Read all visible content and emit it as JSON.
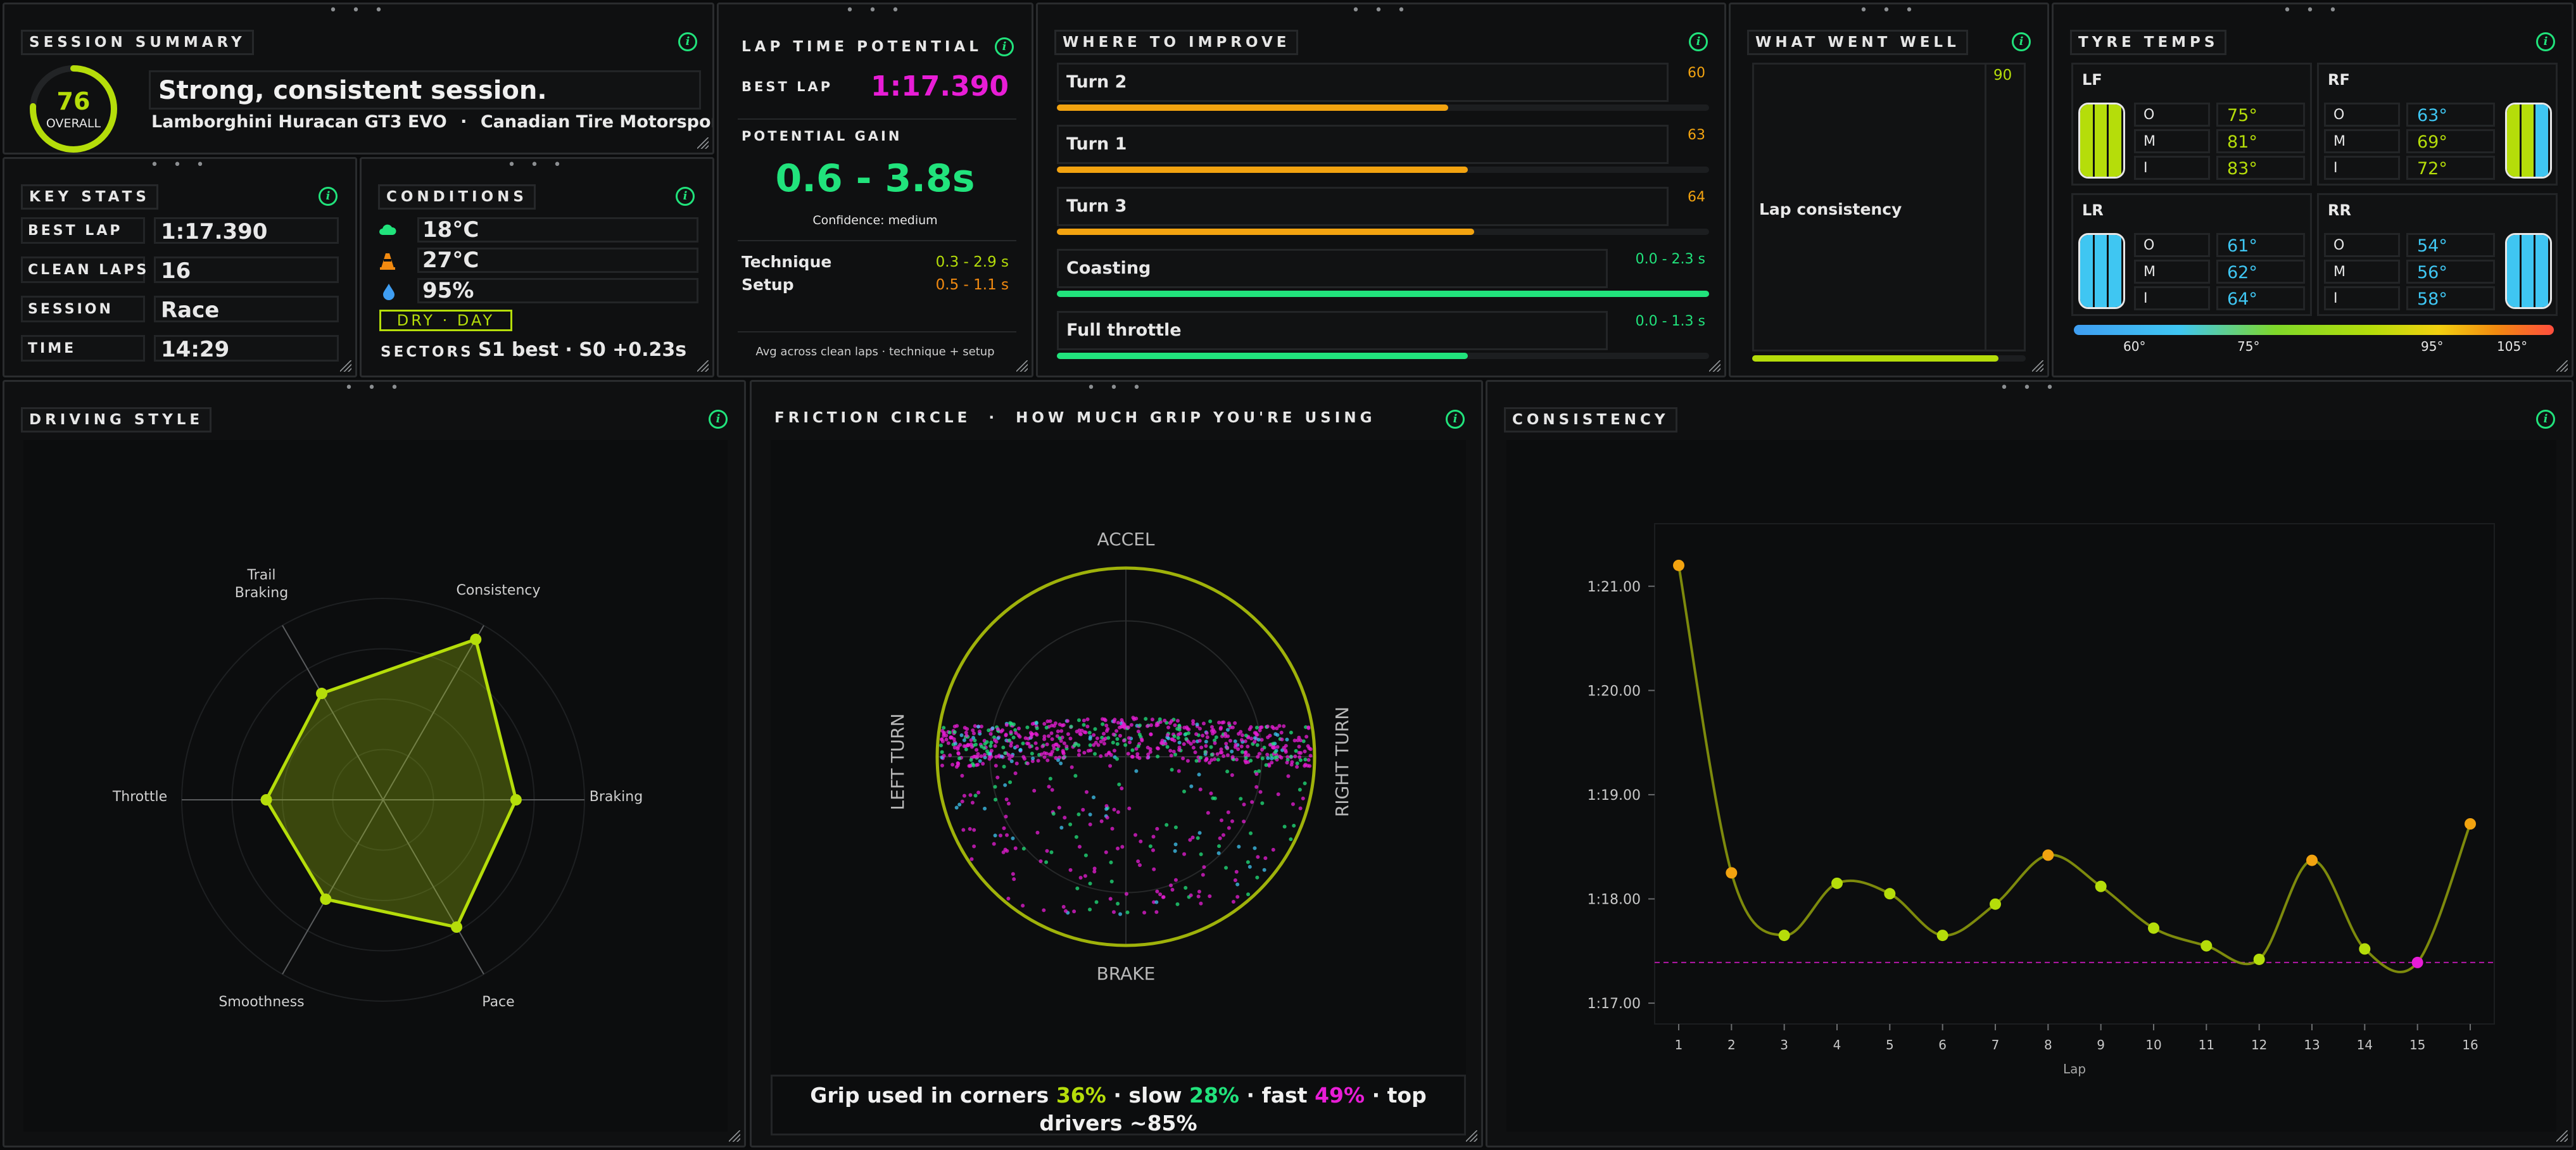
{
  "session_summary": {
    "title": "Session Summary",
    "score": "76",
    "score_label": "OVERALL",
    "score_fraction": 0.76,
    "headline": "Strong, consistent session.",
    "car": "Lamborghini Huracan GT3 EVO",
    "separator": "·",
    "track": "Canadian Tire Motorsport"
  },
  "key_stats": {
    "title": "Key Stats",
    "rows": [
      {
        "label": "BEST LAP",
        "value": "1:17.390"
      },
      {
        "label": "CLEAN LAPS",
        "value": "16"
      },
      {
        "label": "SESSION",
        "value": "Race"
      },
      {
        "label": "TIME",
        "value": "14:29"
      }
    ]
  },
  "conditions": {
    "title": "Conditions",
    "air_temp": "18°C",
    "track_temp": "27°C",
    "humidity": "95%",
    "badge": "DRY · DAY",
    "sectors_label": "SECTORS",
    "sectors_value": "S1 best · S0 +0.23s"
  },
  "lap_potential": {
    "title": "Lap Time Potential",
    "best_lap_label": "BEST LAP",
    "best_lap_value": "1:17.390",
    "gain_label": "POTENTIAL GAIN",
    "gain_value": "0.6 - 3.8s",
    "confidence": "Confidence: medium",
    "technique_label": "Technique",
    "technique_value": "0.3 - 2.9 s",
    "setup_label": "Setup",
    "setup_value": "0.5 - 1.1 s",
    "footnote": "Avg across clean laps · technique + setup"
  },
  "where_to_improve": {
    "title": "Where to Improve",
    "items": [
      {
        "label": "Turn 2",
        "value": "60",
        "fill": 0.6,
        "color": "#f2a310"
      },
      {
        "label": "Turn 1",
        "value": "63",
        "fill": 0.63,
        "color": "#f2a310"
      },
      {
        "label": "Turn 3",
        "value": "64",
        "fill": 0.64,
        "color": "#f2a310"
      },
      {
        "label": "Coasting",
        "value": "0.0 - 2.3 s",
        "fill": 1.0,
        "color": "#21e37c"
      },
      {
        "label": "Full throttle",
        "value": "0.0 - 1.3 s",
        "fill": 0.63,
        "color": "#21e37c"
      }
    ]
  },
  "what_went_well": {
    "title": "What Went Well",
    "label": "Lap consistency",
    "value": "90",
    "fill": 0.9
  },
  "tyre_temps": {
    "title": "Tyre Temps",
    "tyres": [
      {
        "id": "LF",
        "o": "75°",
        "m": "81°",
        "i": "83°",
        "ocolor": "#b5dd0a",
        "mcolor": "#b5dd0a",
        "icolor": "#b5dd0a"
      },
      {
        "id": "RF",
        "o": "63°",
        "m": "69°",
        "i": "72°",
        "ocolor": "#3fc6f2",
        "mcolor": "#b5dd0a",
        "icolor": "#b5dd0a"
      },
      {
        "id": "LR",
        "o": "61°",
        "m": "62°",
        "i": "64°",
        "ocolor": "#3fc6f2",
        "mcolor": "#3fc6f2",
        "icolor": "#3fc6f2"
      },
      {
        "id": "RR",
        "o": "54°",
        "m": "56°",
        "i": "58°",
        "ocolor": "#3fc6f2",
        "mcolor": "#3fc6f2",
        "icolor": "#3fc6f2"
      }
    ],
    "row_labels": [
      "O",
      "M",
      "I"
    ],
    "scale_ticks": [
      "60°",
      "75°",
      "95°",
      "105°"
    ]
  },
  "driving_style": {
    "title": "Driving Style",
    "chart_data": {
      "type": "radar",
      "axes": [
        "Consistency",
        "Braking",
        "Pace",
        "Smoothness",
        "Throttle",
        "Trail Braking"
      ],
      "values": [
        0.92,
        0.66,
        0.73,
        0.57,
        0.58,
        0.61
      ],
      "max": 1.0,
      "color": "#b5dd0a"
    }
  },
  "friction_circle": {
    "title": "Friction Circle",
    "subtitle": "How much grip you're using",
    "labels": {
      "top": "ACCEL",
      "bottom": "BRAKE",
      "left": "LEFT TURN",
      "right": "RIGHT TURN"
    },
    "caption_prefix": "Grip used in corners",
    "corners_pct": "36%",
    "slow_label": "slow",
    "slow_pct": "28%",
    "fast_label": "fast",
    "fast_pct": "49%",
    "top_label": "top drivers ~85%"
  },
  "consistency": {
    "title": "Consistency",
    "chart_data": {
      "type": "line",
      "xlabel": "Lap",
      "x": [
        1,
        2,
        3,
        4,
        5,
        6,
        7,
        8,
        9,
        10,
        11,
        12,
        13,
        14,
        15,
        16
      ],
      "y": [
        81.2,
        78.25,
        77.65,
        78.15,
        78.05,
        77.65,
        77.95,
        78.42,
        78.12,
        77.72,
        77.55,
        77.42,
        78.37,
        77.52,
        77.39,
        78.72
      ],
      "point_colors": [
        "#f2a310",
        "#f2a310",
        "#b5dd0a",
        "#b5dd0a",
        "#b5dd0a",
        "#b5dd0a",
        "#b5dd0a",
        "#f2a310",
        "#b5dd0a",
        "#b5dd0a",
        "#b5dd0a",
        "#b5dd0a",
        "#f2a310",
        "#b5dd0a",
        "#e81dd6",
        "#f2a310"
      ],
      "best_line": 77.39,
      "ylim": [
        76.8,
        81.6
      ],
      "yticks": [
        77,
        78,
        79,
        80,
        81
      ],
      "ytick_labels": [
        "1:17.00",
        "1:18.00",
        "1:19.00",
        "1:20.00",
        "1:21.00"
      ]
    }
  }
}
